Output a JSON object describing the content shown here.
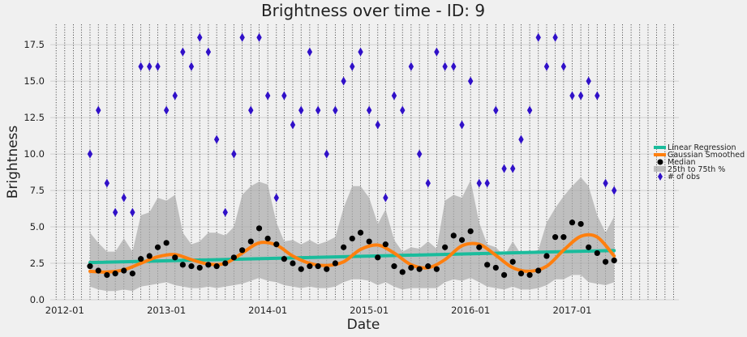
{
  "chart_data": {
    "type": "scatter",
    "title": "Brightness over time - ID: 9",
    "xlabel": "Date",
    "ylabel": "Brightness",
    "xlim": [
      "2011-11-10",
      "2018-01-20"
    ],
    "ylim": [
      0,
      18.9
    ],
    "grid": true,
    "x_ticks": [
      "2012-01",
      "2013-01",
      "2014-01",
      "2015-01",
      "2016-01",
      "2017-01"
    ],
    "y_ticks": [
      0.0,
      2.5,
      5.0,
      7.5,
      10.0,
      12.5,
      15.0,
      17.5
    ],
    "y_tick_labels": [
      "0.0",
      "2.5",
      "5.0",
      "7.5",
      "10.0",
      "12.5",
      "15.0",
      "17.5"
    ],
    "legend": {
      "position": "right",
      "entries": [
        "Linear Regression",
        "Gaussian Smoothed",
        "Median",
        "25th to 75th %",
        "# of obs"
      ]
    },
    "colors": {
      "linear_regression": "#1abc9c",
      "gaussian_smoothed": "#ff7f0e",
      "median": "#000000",
      "iqr_band": "#a9a9a9",
      "obs": "#3010c8",
      "vertical_grid": "#333333"
    },
    "dates": [
      "2012-04-01",
      "2012-05-01",
      "2012-06-01",
      "2012-07-01",
      "2012-08-01",
      "2012-09-01",
      "2012-10-01",
      "2012-11-01",
      "2012-12-01",
      "2013-01-01",
      "2013-02-01",
      "2013-03-01",
      "2013-04-01",
      "2013-05-01",
      "2013-06-01",
      "2013-07-01",
      "2013-08-01",
      "2013-09-01",
      "2013-10-01",
      "2013-11-01",
      "2013-12-01",
      "2014-01-01",
      "2014-02-01",
      "2014-03-01",
      "2014-04-01",
      "2014-05-01",
      "2014-06-01",
      "2014-07-01",
      "2014-08-01",
      "2014-09-01",
      "2014-10-01",
      "2014-11-01",
      "2014-12-01",
      "2015-01-01",
      "2015-02-01",
      "2015-03-01",
      "2015-04-01",
      "2015-05-01",
      "2015-06-01",
      "2015-07-01",
      "2015-08-01",
      "2015-09-01",
      "2015-10-01",
      "2015-11-01",
      "2015-12-01",
      "2016-01-01",
      "2016-02-01",
      "2016-03-01",
      "2016-04-01",
      "2016-05-01",
      "2016-06-01",
      "2016-07-01",
      "2016-08-01",
      "2016-09-01",
      "2016-10-01",
      "2016-11-01",
      "2016-12-01",
      "2017-01-01",
      "2017-02-01",
      "2017-03-01",
      "2017-04-01",
      "2017-05-01",
      "2017-06-01"
    ],
    "median": [
      2.3,
      2.0,
      1.7,
      1.8,
      2.0,
      1.8,
      2.8,
      3.0,
      3.6,
      3.9,
      2.9,
      2.4,
      2.3,
      2.2,
      2.4,
      2.3,
      2.5,
      2.9,
      3.4,
      4.0,
      4.9,
      4.2,
      3.8,
      2.8,
      2.5,
      2.1,
      2.3,
      2.3,
      2.1,
      2.5,
      3.6,
      4.2,
      4.6,
      4.0,
      2.9,
      3.8,
      2.3,
      1.9,
      2.2,
      2.1,
      2.3,
      2.1,
      3.6,
      4.4,
      4.1,
      4.7,
      3.6,
      2.4,
      2.2,
      1.7,
      2.6,
      1.8,
      1.7,
      2.0,
      3.0,
      4.3,
      4.3,
      5.3,
      5.2,
      3.6,
      3.2,
      2.6,
      2.7
    ],
    "q25": [
      0.9,
      0.7,
      0.6,
      0.6,
      0.7,
      0.6,
      0.9,
      1.0,
      1.1,
      1.2,
      1.0,
      0.9,
      0.8,
      0.8,
      0.9,
      0.8,
      0.9,
      1.0,
      1.1,
      1.3,
      1.5,
      1.3,
      1.2,
      1.0,
      0.9,
      0.8,
      0.9,
      0.8,
      0.8,
      0.9,
      1.2,
      1.4,
      1.4,
      1.3,
      1.0,
      1.2,
      0.9,
      0.7,
      0.8,
      0.8,
      0.8,
      0.8,
      1.2,
      1.4,
      1.3,
      1.5,
      1.2,
      0.9,
      0.8,
      0.7,
      0.9,
      0.7,
      0.7,
      0.8,
      1.0,
      1.4,
      1.4,
      1.7,
      1.7,
      1.2,
      1.1,
      1.0,
      1.2
    ],
    "q75": [
      4.6,
      3.9,
      3.3,
      3.3,
      4.2,
      3.3,
      5.8,
      6.0,
      7.0,
      6.8,
      7.2,
      4.6,
      3.8,
      4.0,
      4.6,
      4.6,
      4.4,
      5.0,
      7.2,
      7.8,
      8.1,
      7.9,
      5.3,
      4.0,
      4.1,
      3.8,
      4.1,
      3.8,
      4.0,
      4.3,
      6.3,
      7.8,
      7.8,
      7.0,
      5.2,
      6.2,
      4.1,
      3.3,
      3.6,
      3.5,
      4.0,
      3.5,
      6.8,
      7.2,
      7.0,
      8.2,
      5.3,
      3.8,
      3.6,
      3.0,
      4.0,
      3.1,
      3.3,
      3.4,
      5.3,
      6.3,
      7.1,
      7.8,
      8.4,
      7.8,
      5.8,
      4.6,
      5.7
    ],
    "obs_count": [
      10,
      13,
      8,
      6,
      7,
      6,
      16,
      16,
      16,
      13,
      14,
      17,
      16,
      18,
      17,
      11,
      6,
      10,
      18,
      13,
      18,
      14,
      7,
      14,
      12,
      13,
      17,
      13,
      10,
      13,
      15,
      16,
      17,
      13,
      12,
      7,
      14,
      13,
      16,
      10,
      8,
      17,
      16,
      16,
      12,
      15,
      8,
      8,
      13,
      9,
      9,
      11,
      13,
      18,
      16,
      18,
      16,
      14,
      14,
      15,
      14,
      8,
      7.5
    ],
    "linear_regression": {
      "start": [
        "2012-04-01",
        2.55
      ],
      "end": [
        "2017-06-01",
        3.38
      ]
    },
    "gaussian_smoothed": {
      "x": [
        "2012-04-01",
        "2012-06-01",
        "2012-08-01",
        "2012-10-01",
        "2012-12-01",
        "2013-02-01",
        "2013-04-01",
        "2013-06-01",
        "2013-08-01",
        "2013-10-01",
        "2013-12-01",
        "2014-02-01",
        "2014-04-01",
        "2014-06-01",
        "2014-08-01",
        "2014-10-01",
        "2014-12-01",
        "2015-02-01",
        "2015-04-01",
        "2015-06-01",
        "2015-08-01",
        "2015-10-01",
        "2015-12-01",
        "2016-02-01",
        "2016-04-01",
        "2016-06-01",
        "2016-08-01",
        "2016-10-01",
        "2016-12-01",
        "2017-02-01",
        "2017-04-01",
        "2017-06-01"
      ],
      "y": [
        1.95,
        1.9,
        2.05,
        2.5,
        2.95,
        3.1,
        2.75,
        2.45,
        2.5,
        3.2,
        3.9,
        3.75,
        3.0,
        2.5,
        2.35,
        2.6,
        3.45,
        3.75,
        3.2,
        2.4,
        2.2,
        2.75,
        3.7,
        3.8,
        3.05,
        2.2,
        1.95,
        2.3,
        3.4,
        4.35,
        4.3,
        3.0
      ]
    }
  }
}
